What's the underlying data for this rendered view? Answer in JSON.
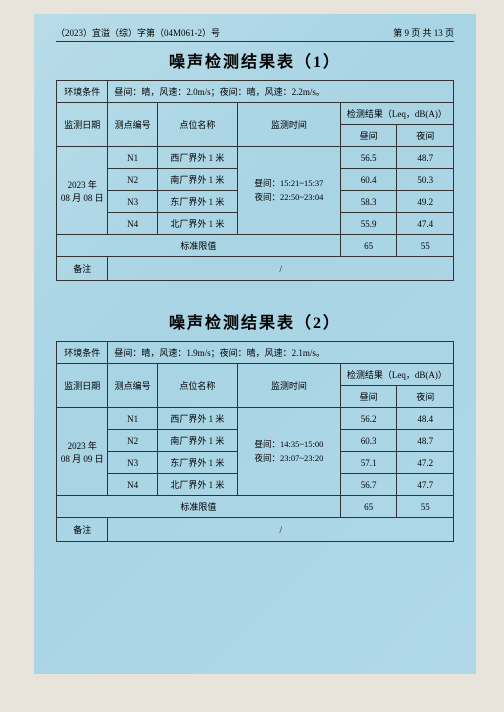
{
  "header": {
    "doc_no": "（2023）宜溢（综）字第（04M061-2）号",
    "page_info": "第 9 页 共 13 页"
  },
  "table1": {
    "title": "噪声检测结果表（1）",
    "cond_label": "环境条件",
    "cond_value": "昼间：晴，风速：2.0m/s；夜间：晴，风速：2.2m/s。",
    "h_date": "监测日期",
    "h_pid": "测点编号",
    "h_pname": "点位名称",
    "h_time": "监测时间",
    "h_result": "检测结果（Leq，dB(A)）",
    "h_day": "昼间",
    "h_night": "夜间",
    "date": "2023 年\n08 月 08 日",
    "time_text": "昼间：15:21~15:37\n夜间：22:50~23:04",
    "rows": [
      {
        "pid": "N1",
        "pname": "西厂界外 1 米",
        "day": "56.5",
        "night": "48.7"
      },
      {
        "pid": "N2",
        "pname": "南厂界外 1 米",
        "day": "60.4",
        "night": "50.3"
      },
      {
        "pid": "N3",
        "pname": "东厂界外 1 米",
        "day": "58.3",
        "night": "49.2"
      },
      {
        "pid": "N4",
        "pname": "北厂界外 1 米",
        "day": "55.9",
        "night": "47.4"
      }
    ],
    "limit_label": "标准限值",
    "limit_day": "65",
    "limit_night": "55",
    "remark_label": "备注",
    "remark_value": "/"
  },
  "table2": {
    "title": "噪声检测结果表（2）",
    "cond_label": "环境条件",
    "cond_value": "昼间：晴，风速：1.9m/s；夜间：晴，风速：2.1m/s。",
    "h_date": "监测日期",
    "h_pid": "测点编号",
    "h_pname": "点位名称",
    "h_time": "监测时间",
    "h_result": "检测结果（Leq，dB(A)）",
    "h_day": "昼间",
    "h_night": "夜间",
    "date": "2023 年\n08 月 09 日",
    "time_text": "昼间：14:35~15:00\n夜间：23:07~23:20",
    "rows": [
      {
        "pid": "N1",
        "pname": "西厂界外 1 米",
        "day": "56.2",
        "night": "48.4"
      },
      {
        "pid": "N2",
        "pname": "南厂界外 1 米",
        "day": "60.3",
        "night": "48.7"
      },
      {
        "pid": "N3",
        "pname": "东厂界外 1 米",
        "day": "57.1",
        "night": "47.2"
      },
      {
        "pid": "N4",
        "pname": "北厂界外 1 米",
        "day": "56.7",
        "night": "47.7"
      }
    ],
    "limit_label": "标准限值",
    "limit_day": "65",
    "limit_night": "55",
    "remark_label": "备注",
    "remark_value": "/"
  }
}
